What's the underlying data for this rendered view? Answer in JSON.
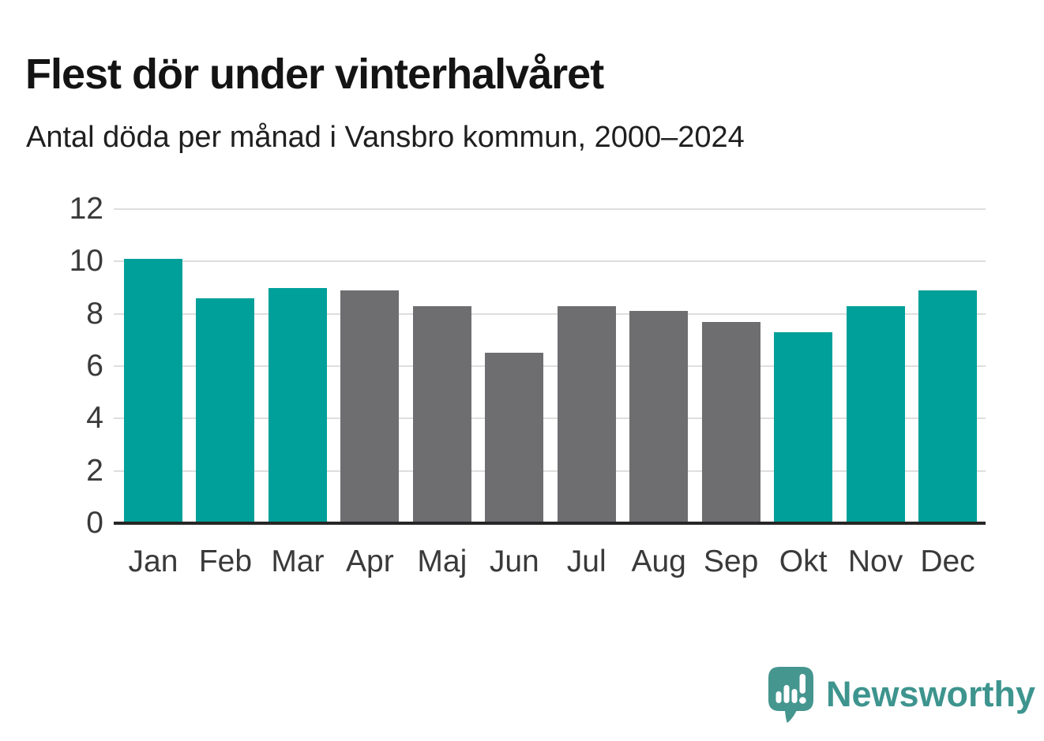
{
  "header": {
    "title": "Flest dör under vinterhalvåret",
    "subtitle": "Antal döda per månad i Vansbro kommun, 2000–2024"
  },
  "chart_data": {
    "type": "bar",
    "title": "Flest dör under vinterhalvåret",
    "subtitle": "Antal döda per månad i Vansbro kommun, 2000–2024",
    "categories": [
      "Jan",
      "Feb",
      "Mar",
      "Apr",
      "Maj",
      "Jun",
      "Jul",
      "Aug",
      "Sep",
      "Okt",
      "Nov",
      "Dec"
    ],
    "values": [
      10.1,
      8.6,
      9.0,
      8.9,
      8.3,
      6.5,
      8.3,
      8.1,
      7.7,
      7.3,
      8.3,
      8.9
    ],
    "bar_colors": [
      "teal",
      "teal",
      "teal",
      "gray",
      "gray",
      "gray",
      "gray",
      "gray",
      "gray",
      "teal",
      "teal",
      "teal"
    ],
    "palette": {
      "teal": "#00A09A",
      "gray": "#6E6E71"
    },
    "xlabel": "",
    "ylabel": "",
    "ylim": [
      0,
      12
    ],
    "yticks": [
      0,
      2,
      4,
      6,
      8,
      10,
      12
    ],
    "grid": "horizontal-only",
    "legend": "none",
    "axis_line_color": "#262626",
    "gridline_color": "#dedede"
  },
  "footer": {
    "brand": "Newsworthy",
    "brand_color": "#3E948E",
    "logo_icon": "newsworthy-speech-bubble-bar-chart-icon"
  }
}
